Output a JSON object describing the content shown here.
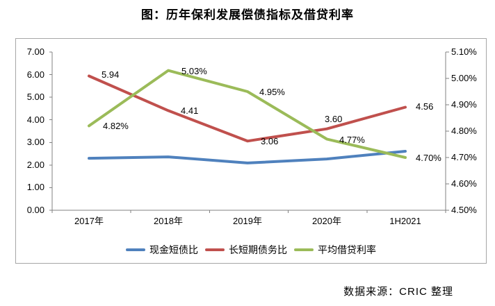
{
  "chart": {
    "title": "图：历年保利发展偿债指标及借贷利率",
    "source_note": "数据来源：CRIC 整理"
  },
  "chart_data": {
    "type": "line",
    "title": "图：历年保利发展偿债指标及借贷利率",
    "categories": [
      "2017年",
      "2018年",
      "2019年",
      "2020年",
      "1H2021"
    ],
    "series": [
      {
        "name": "现金短债比",
        "axis": "left",
        "color": "#4F81BD",
        "values": [
          2.3,
          2.36,
          2.09,
          2.27,
          2.61
        ],
        "point_labels": [
          "",
          "",
          "",
          "",
          ""
        ]
      },
      {
        "name": "长短期债务比",
        "axis": "left",
        "color": "#C0504D",
        "values": [
          5.94,
          4.41,
          3.06,
          3.6,
          4.56
        ],
        "point_labels": [
          "5.94",
          "4.41",
          "3.06",
          "3.60",
          "4.56"
        ]
      },
      {
        "name": "平均借贷利率",
        "axis": "right",
        "color": "#9BBB59",
        "values": [
          4.82,
          5.03,
          4.95,
          4.77,
          4.7
        ],
        "point_labels": [
          "4.82%",
          "5.03%",
          "4.95%",
          "4.77%",
          "4.70%"
        ]
      }
    ],
    "left_axis": {
      "min": 0,
      "max": 7,
      "step": 1,
      "tick_labels_top_to_bottom": [
        "7.00",
        "6.00",
        "5.00",
        "4.00",
        "3.00",
        "2.00",
        "1.00",
        "0.00"
      ]
    },
    "right_axis": {
      "min": 4.5,
      "max": 5.1,
      "step": 0.1,
      "tick_labels_top_to_bottom": [
        "5.10%",
        "5.00%",
        "4.90%",
        "4.80%",
        "4.70%",
        "4.60%",
        "4.50%"
      ]
    },
    "grid": false,
    "legend_position": "bottom",
    "axis_color": "#808080",
    "frame_color": "#a6a6a6",
    "source_note": "数据来源：CRIC 整理"
  }
}
